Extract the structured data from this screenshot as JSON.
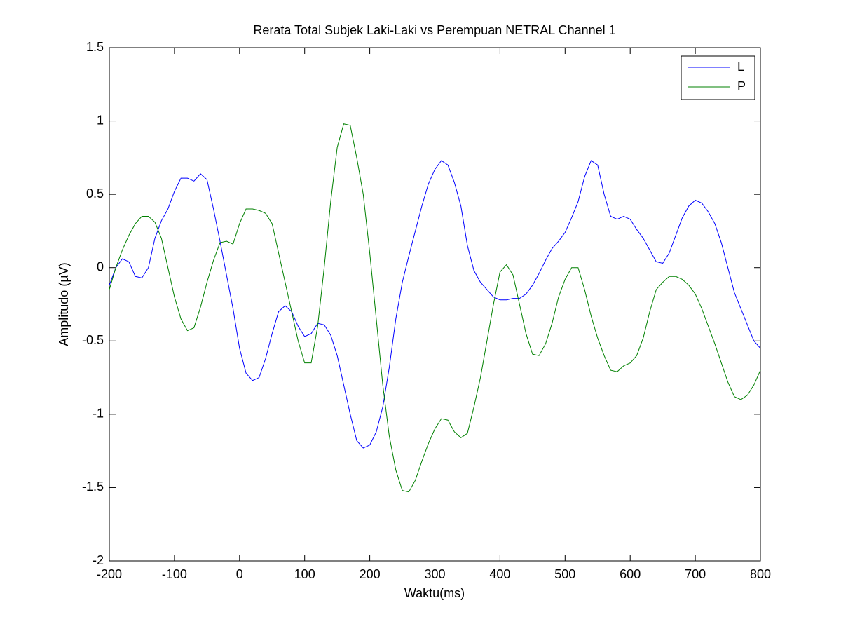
{
  "chart_data": {
    "type": "line",
    "title": "Rerata Total Subjek Laki-Laki vs Perempuan NETRAL Channel 1",
    "x_label": "Waktu(ms)",
    "y_label": "Amplitudo (µV)",
    "x": [
      -200,
      -190,
      -180,
      -170,
      -160,
      -150,
      -140,
      -130,
      -120,
      -110,
      -100,
      -90,
      -80,
      -70,
      -60,
      -50,
      -40,
      -30,
      -20,
      -10,
      0,
      10,
      20,
      30,
      40,
      50,
      60,
      70,
      80,
      90,
      100,
      110,
      120,
      130,
      140,
      150,
      160,
      170,
      180,
      190,
      200,
      210,
      220,
      230,
      240,
      250,
      260,
      270,
      280,
      290,
      300,
      310,
      320,
      330,
      340,
      350,
      360,
      370,
      380,
      390,
      400,
      410,
      420,
      430,
      440,
      450,
      460,
      470,
      480,
      490,
      500,
      510,
      520,
      530,
      540,
      550,
      560,
      570,
      580,
      590,
      600,
      610,
      620,
      630,
      640,
      650,
      660,
      670,
      680,
      690,
      700,
      710,
      720,
      730,
      740,
      750,
      760,
      770,
      780,
      790,
      800
    ],
    "series": [
      {
        "name": "L",
        "color": "#0000ff",
        "values": [
          -0.12,
          0.0,
          0.06,
          0.04,
          -0.06,
          -0.07,
          0.0,
          0.2,
          0.32,
          0.4,
          0.52,
          0.61,
          0.61,
          0.59,
          0.64,
          0.6,
          0.4,
          0.18,
          -0.05,
          -0.28,
          -0.55,
          -0.72,
          -0.77,
          -0.75,
          -0.62,
          -0.45,
          -0.3,
          -0.26,
          -0.3,
          -0.4,
          -0.47,
          -0.45,
          -0.38,
          -0.39,
          -0.46,
          -0.6,
          -0.8,
          -1.0,
          -1.18,
          -1.23,
          -1.21,
          -1.12,
          -0.95,
          -0.68,
          -0.35,
          -0.1,
          0.08,
          0.25,
          0.42,
          0.57,
          0.67,
          0.73,
          0.7,
          0.58,
          0.42,
          0.15,
          -0.02,
          -0.1,
          -0.15,
          -0.2,
          -0.22,
          -0.22,
          -0.21,
          -0.21,
          -0.18,
          -0.12,
          -0.04,
          0.05,
          0.13,
          0.18,
          0.24,
          0.34,
          0.45,
          0.62,
          0.73,
          0.7,
          0.5,
          0.35,
          0.33,
          0.35,
          0.33,
          0.26,
          0.2,
          0.12,
          0.04,
          0.03,
          0.1,
          0.22,
          0.34,
          0.42,
          0.46,
          0.44,
          0.38,
          0.3,
          0.17,
          0.0,
          -0.17,
          -0.28,
          -0.39,
          -0.5,
          -0.55
        ]
      },
      {
        "name": "P",
        "color": "#008000",
        "values": [
          -0.15,
          0.0,
          0.12,
          0.22,
          0.3,
          0.35,
          0.35,
          0.31,
          0.2,
          0.0,
          -0.2,
          -0.35,
          -0.43,
          -0.41,
          -0.27,
          -0.1,
          0.05,
          0.17,
          0.18,
          0.16,
          0.3,
          0.4,
          0.4,
          0.39,
          0.37,
          0.3,
          0.1,
          -0.1,
          -0.3,
          -0.5,
          -0.65,
          -0.65,
          -0.4,
          0.0,
          0.45,
          0.82,
          0.98,
          0.97,
          0.75,
          0.5,
          0.1,
          -0.35,
          -0.8,
          -1.15,
          -1.38,
          -1.52,
          -1.53,
          -1.45,
          -1.32,
          -1.2,
          -1.1,
          -1.03,
          -1.04,
          -1.12,
          -1.16,
          -1.13,
          -0.95,
          -0.75,
          -0.5,
          -0.25,
          -0.03,
          0.02,
          -0.05,
          -0.25,
          -0.45,
          -0.59,
          -0.6,
          -0.52,
          -0.38,
          -0.2,
          -0.08,
          0.0,
          0.0,
          -0.15,
          -0.33,
          -0.48,
          -0.6,
          -0.7,
          -0.71,
          -0.67,
          -0.65,
          -0.6,
          -0.48,
          -0.3,
          -0.15,
          -0.1,
          -0.06,
          -0.06,
          -0.08,
          -0.12,
          -0.18,
          -0.28,
          -0.4,
          -0.52,
          -0.65,
          -0.78,
          -0.88,
          -0.9,
          -0.87,
          -0.8,
          -0.7
        ]
      }
    ],
    "xlim": [
      -200,
      800
    ],
    "xticks": [
      -200,
      -100,
      0,
      100,
      200,
      300,
      400,
      500,
      600,
      700,
      800
    ],
    "ylim": [
      -2,
      1.5
    ],
    "yticks": [
      -2,
      -1.5,
      -1,
      -0.5,
      0,
      0.5,
      1,
      1.5
    ],
    "grid": false,
    "legend": "top-right"
  }
}
